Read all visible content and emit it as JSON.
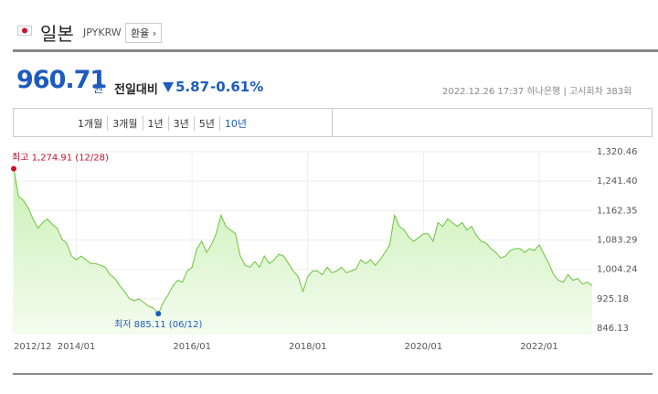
{
  "header": {
    "name": "일본",
    "code": "JPYKRW",
    "button": "환율 ›"
  },
  "quote": {
    "price": "960.71",
    "unit": "원",
    "change_label": "전일대비",
    "change": "5.87",
    "change_pct": "-0.61%",
    "datetime": "2022.12.26 17:37",
    "bank": "하나은행",
    "round": "고시회차 383회"
  },
  "tabs": [
    "1개월",
    "3개월",
    "1년",
    "3년",
    "5년",
    "10년"
  ],
  "active_tab": 5,
  "chart_data": {
    "type": "line",
    "annotations": [
      "최고 1,274.91 (12/28)",
      "최저 885.11 (06/12)"
    ],
    "x": [
      "2012/12",
      "2013/01",
      "2013/02",
      "2013/03",
      "2013/04",
      "2013/05",
      "2013/06",
      "2013/07",
      "2013/08",
      "2013/09",
      "2013/10",
      "2013/11",
      "2013/12",
      "2014/01",
      "2014/02",
      "2014/03",
      "2014/04",
      "2014/05",
      "2014/06",
      "2014/07",
      "2014/08",
      "2014/09",
      "2014/10",
      "2014/11",
      "2014/12",
      "2015/01",
      "2015/02",
      "2015/03",
      "2015/04",
      "2015/05",
      "2015/06",
      "2015/07",
      "2015/08",
      "2015/09",
      "2015/10",
      "2015/11",
      "2015/12",
      "2016/01",
      "2016/02",
      "2016/03",
      "2016/04",
      "2016/05",
      "2016/06",
      "2016/07",
      "2016/08",
      "2016/09",
      "2016/10",
      "2016/11",
      "2016/12",
      "2017/01",
      "2017/02",
      "2017/03",
      "2017/04",
      "2017/05",
      "2017/06",
      "2017/07",
      "2017/08",
      "2017/09",
      "2017/10",
      "2017/11",
      "2017/12",
      "2018/01",
      "2018/02",
      "2018/03",
      "2018/04",
      "2018/05",
      "2018/06",
      "2018/07",
      "2018/08",
      "2018/09",
      "2018/10",
      "2018/11",
      "2018/12",
      "2019/01",
      "2019/02",
      "2019/03",
      "2019/04",
      "2019/05",
      "2019/06",
      "2019/07",
      "2019/08",
      "2019/09",
      "2019/10",
      "2019/11",
      "2019/12",
      "2020/01",
      "2020/02",
      "2020/03",
      "2020/04",
      "2020/05",
      "2020/06",
      "2020/07",
      "2020/08",
      "2020/09",
      "2020/10",
      "2020/11",
      "2020/12",
      "2021/01",
      "2021/02",
      "2021/03",
      "2021/04",
      "2021/05",
      "2021/06",
      "2021/07",
      "2021/08",
      "2021/09",
      "2021/10",
      "2021/11",
      "2021/12",
      "2022/01",
      "2022/02",
      "2022/03",
      "2022/04",
      "2022/05",
      "2022/06",
      "2022/07",
      "2022/08",
      "2022/09",
      "2022/10",
      "2022/11",
      "2022/12"
    ],
    "series": [
      {
        "color": "#6cc43a",
        "values": [
          1274.91,
          1200,
          1190,
          1170,
          1140,
          1115,
          1130,
          1140,
          1125,
          1115,
          1085,
          1075,
          1040,
          1030,
          1040,
          1030,
          1020,
          1020,
          1015,
          1010,
          990,
          980,
          960,
          945,
          925,
          920,
          925,
          915,
          905,
          900,
          885.11,
          915,
          935,
          960,
          975,
          970,
          1000,
          1010,
          1060,
          1080,
          1050,
          1070,
          1100,
          1150,
          1120,
          1110,
          1100,
          1040,
          1015,
          1010,
          1025,
          1010,
          1040,
          1020,
          1030,
          1045,
          1040,
          1020,
          1000,
          985,
          945,
          985,
          1000,
          1000,
          990,
          1010,
          995,
          1000,
          1010,
          995,
          1000,
          1005,
          1030,
          1020,
          1030,
          1015,
          1030,
          1050,
          1070,
          1150,
          1120,
          1110,
          1090,
          1080,
          1090,
          1100,
          1100,
          1080,
          1130,
          1120,
          1140,
          1130,
          1120,
          1130,
          1110,
          1120,
          1095,
          1080,
          1075,
          1060,
          1050,
          1035,
          1040,
          1055,
          1060,
          1060,
          1050,
          1060,
          1055,
          1070,
          1045,
          1020,
          990,
          975,
          970,
          990,
          975,
          980,
          965,
          970,
          960.71
        ]
      }
    ],
    "max_index": 0,
    "min_index": 30,
    "ylim": [
      829,
      1320.46
    ],
    "yticks": [
      846.13,
      {
        "value": 925.18,
        "label": "925.18"
      },
      {
        "value": 1004.24,
        "label": "1,004.24"
      },
      {
        "value": 1083.29,
        "label": "1,083.29"
      },
      {
        "value": 1162.35,
        "label": "1,162.35"
      },
      {
        "value": 1241.4,
        "label": "1,241.40"
      },
      {
        "value": 1320.46,
        "label": "1,320.46"
      }
    ],
    "xticks": [
      "2012/12",
      "2014/01",
      "2016/01",
      "2018/01",
      "2020/01",
      "2022/01"
    ],
    "grid": true
  }
}
